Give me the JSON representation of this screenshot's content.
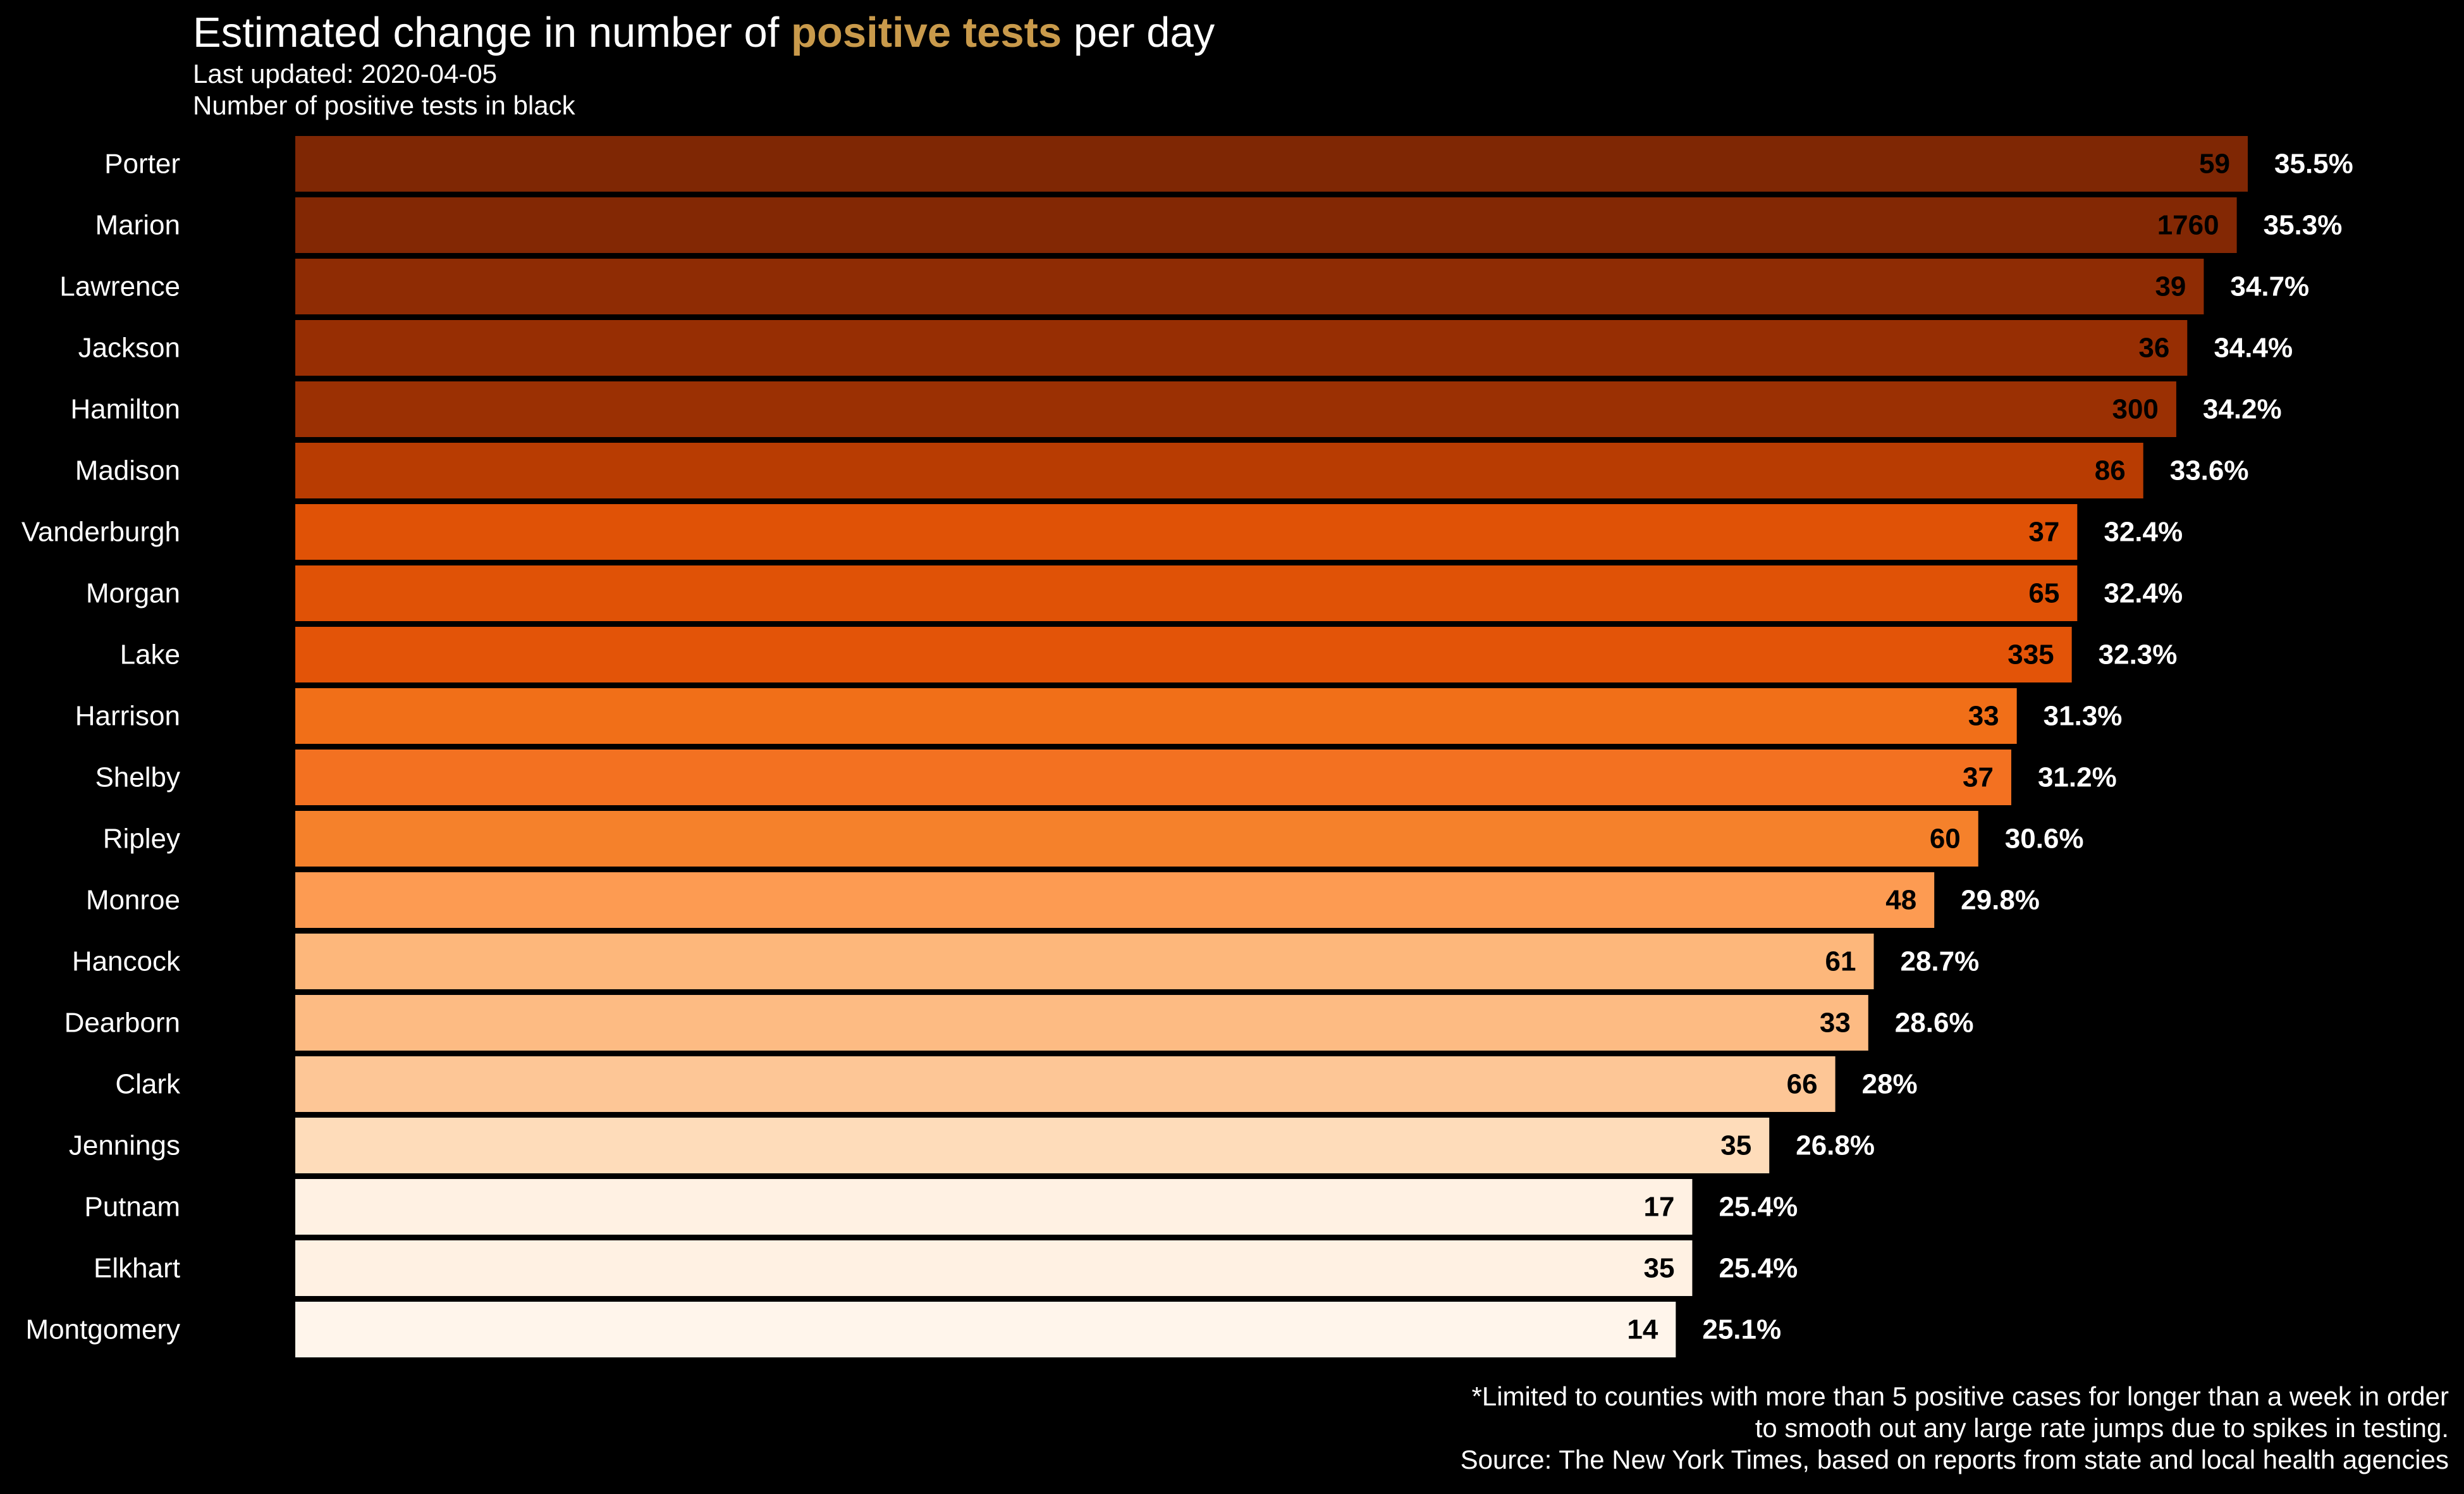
{
  "title": {
    "prefix": "Estimated change in number of ",
    "highlight": "positive tests",
    "suffix": " per day",
    "highlight_color": "#c99a4b"
  },
  "subtitle_1": "Last updated: 2020-04-05",
  "subtitle_2": "Number of positive tests in black",
  "footnote_1": "*Limited to counties with more than 5 positive cases for longer than a week in order",
  "footnote_2": "to smooth out any large rate jumps due to spikes in testing.",
  "source": "Source: The New York Times, based on reports from state and local health agencies",
  "chart_data": {
    "type": "bar",
    "orientation": "horizontal",
    "grid": false,
    "legend": "none",
    "xlim": [
      0,
      35.5
    ],
    "categories": [
      "Porter",
      "Marion",
      "Lawrence",
      "Jackson",
      "Hamilton",
      "Madison",
      "Vanderburgh",
      "Morgan",
      "Lake",
      "Harrison",
      "Shelby",
      "Ripley",
      "Monroe",
      "Hancock",
      "Dearborn",
      "Clark",
      "Jennings",
      "Putnam",
      "Elkhart",
      "Montgomery"
    ],
    "values": [
      35.5,
      35.3,
      34.7,
      34.4,
      34.2,
      33.6,
      32.4,
      32.4,
      32.3,
      31.3,
      31.2,
      30.6,
      29.8,
      28.7,
      28.6,
      28.0,
      26.8,
      25.4,
      25.4,
      25.1
    ],
    "value_labels": [
      "35.5%",
      "35.3%",
      "34.7%",
      "34.4%",
      "34.2%",
      "33.6%",
      "32.4%",
      "32.4%",
      "32.3%",
      "31.3%",
      "31.2%",
      "30.6%",
      "29.8%",
      "28.7%",
      "28.6%",
      "28%",
      "26.8%",
      "25.4%",
      "25.4%",
      "25.1%"
    ],
    "positive_tests": [
      59,
      1760,
      39,
      36,
      300,
      86,
      37,
      65,
      335,
      33,
      37,
      60,
      48,
      61,
      33,
      66,
      35,
      17,
      35,
      14
    ],
    "bar_colors": [
      "#7f2704",
      "#832804",
      "#8f2c04",
      "#972e03",
      "#9b3003",
      "#b83c02",
      "#e05206",
      "#e05206",
      "#e35408",
      "#f16f18",
      "#f37121",
      "#f5812b",
      "#fd9b52",
      "#fdb77b",
      "#fdbb83",
      "#fdc696",
      "#fedcba",
      "#fff1e3",
      "#fff1e3",
      "#fff5eb"
    ]
  }
}
